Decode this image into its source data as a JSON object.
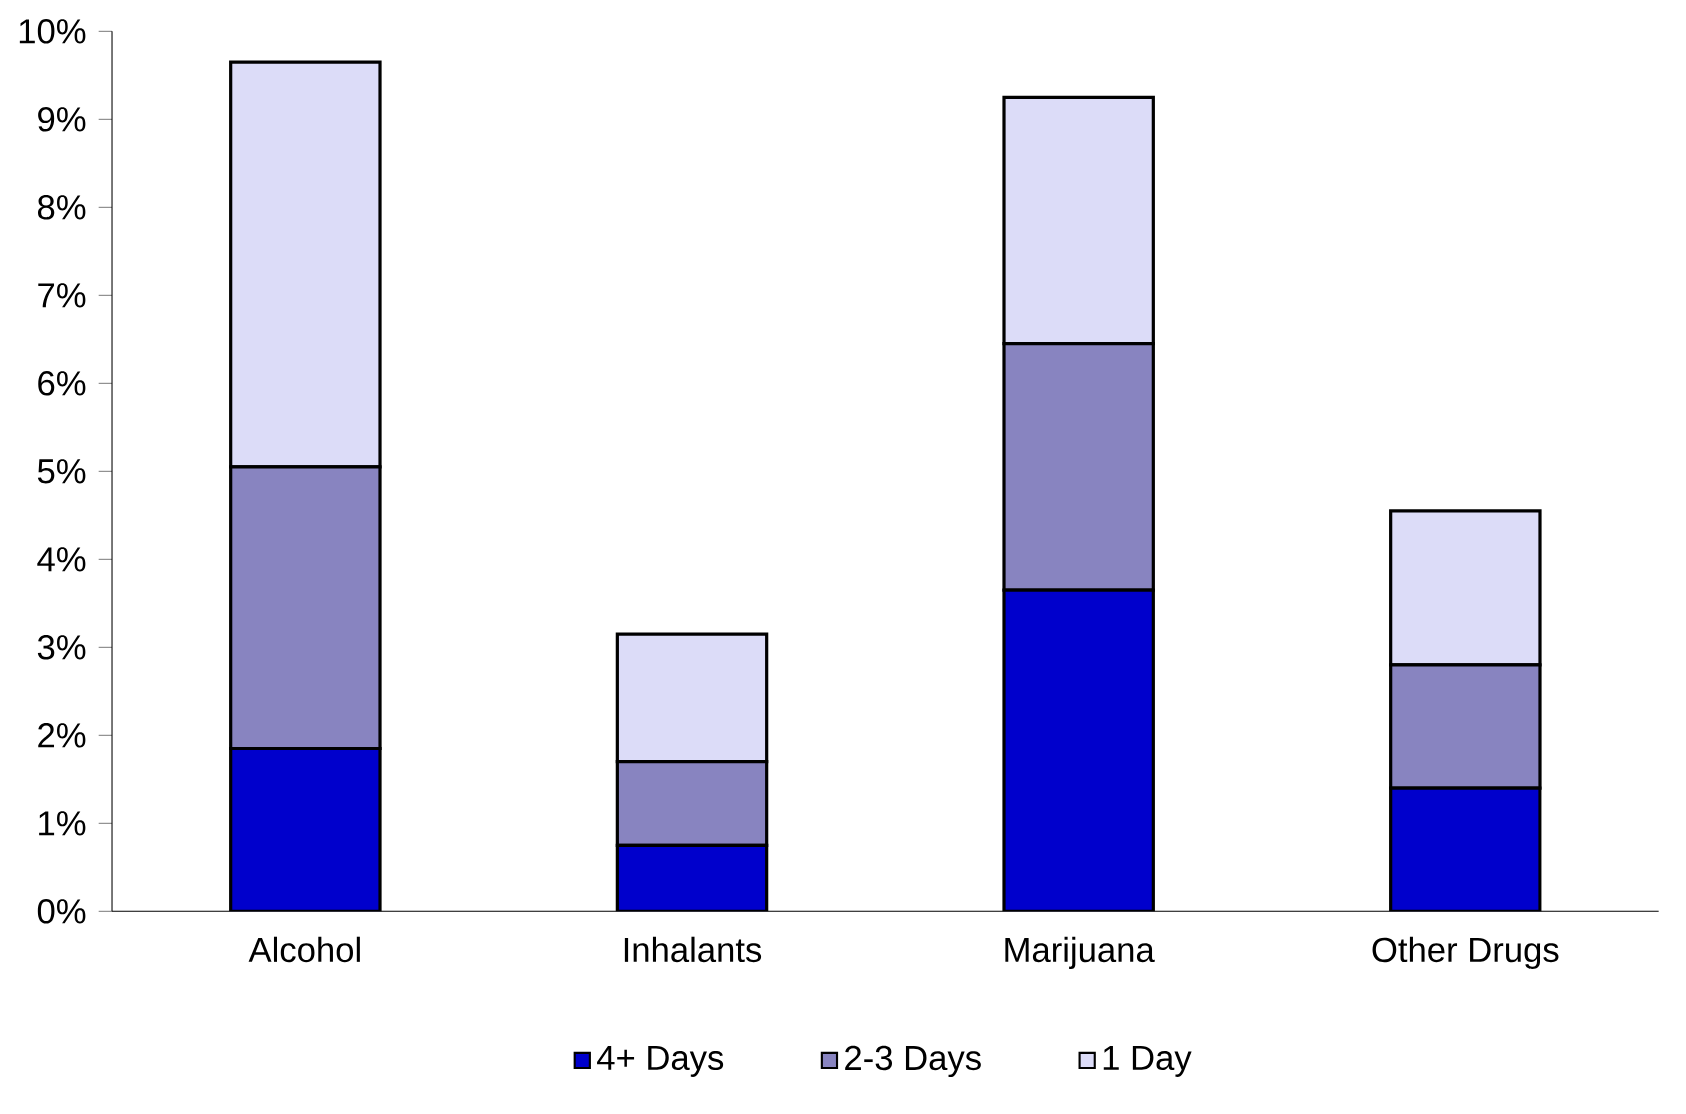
{
  "chart_data": {
    "type": "bar",
    "stacked": true,
    "categories": [
      "Alcohol",
      "Inhalants",
      "Marijuana",
      "Other Drugs"
    ],
    "series": [
      {
        "name": "4+ Days",
        "color": "#0000cc",
        "values": [
          1.85,
          0.75,
          3.65,
          1.4
        ]
      },
      {
        "name": "2-3 Days",
        "color": "#8884c0",
        "values": [
          3.2,
          0.95,
          2.8,
          1.4
        ]
      },
      {
        "name": "1 Day",
        "color": "#dcdcf8",
        "values": [
          4.6,
          1.45,
          2.8,
          1.75
        ]
      }
    ],
    "ylim": [
      0,
      10
    ],
    "yticks": [
      {
        "value": 0,
        "label": "0%"
      },
      {
        "value": 1,
        "label": "1%"
      },
      {
        "value": 2,
        "label": "2%"
      },
      {
        "value": 3,
        "label": "3%"
      },
      {
        "value": 4,
        "label": "4%"
      },
      {
        "value": 5,
        "label": "5%"
      },
      {
        "value": 6,
        "label": "6%"
      },
      {
        "value": 7,
        "label": "7%"
      },
      {
        "value": 8,
        "label": "8%"
      },
      {
        "value": 9,
        "label": "9%"
      },
      {
        "value": 10,
        "label": "10%"
      }
    ],
    "grid": false,
    "legend": "bottom"
  }
}
